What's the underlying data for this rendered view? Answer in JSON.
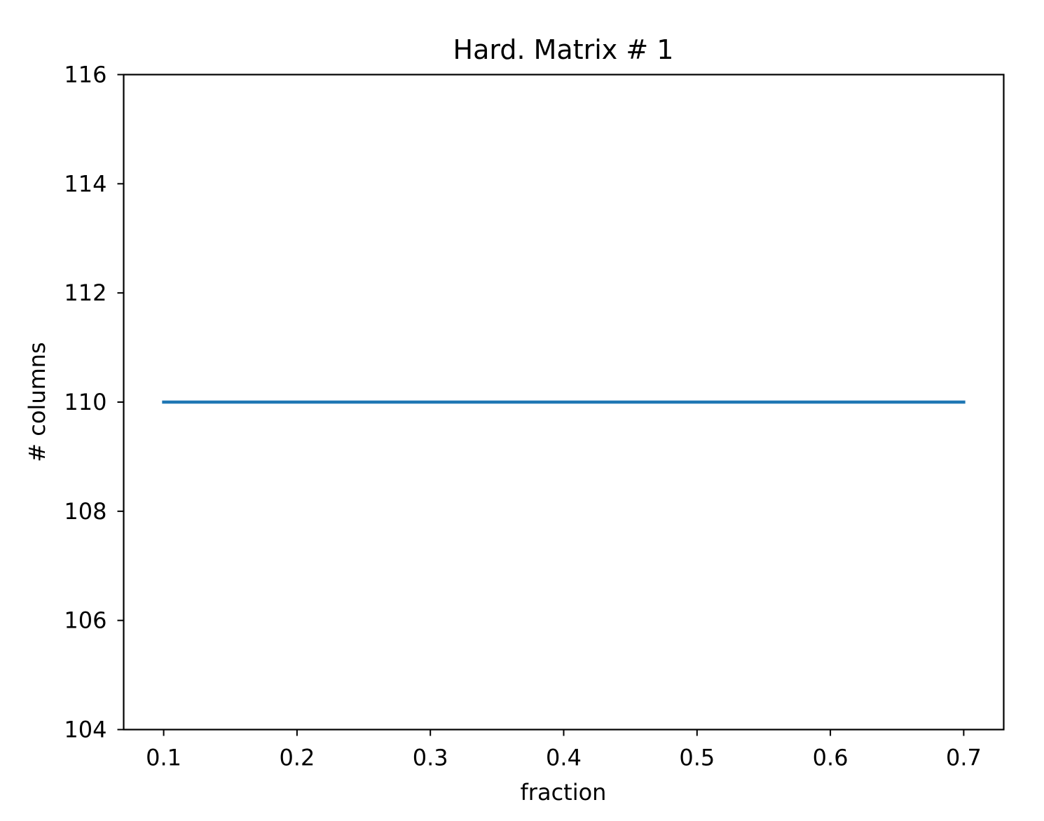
{
  "chart_data": {
    "type": "line",
    "title": "Hard. Matrix # 1",
    "xlabel": "fraction",
    "ylabel": "# columns",
    "xlim": [
      0.07,
      0.73
    ],
    "ylim": [
      104,
      116
    ],
    "x_ticks": [
      0.1,
      0.2,
      0.3,
      0.4,
      0.5,
      0.6,
      0.7
    ],
    "x_tick_labels": [
      "0.1",
      "0.2",
      "0.3",
      "0.4",
      "0.5",
      "0.6",
      "0.7"
    ],
    "y_ticks": [
      104,
      106,
      108,
      110,
      112,
      114,
      116
    ],
    "y_tick_labels": [
      "104",
      "106",
      "108",
      "110",
      "112",
      "114",
      "116"
    ],
    "grid": false,
    "series": [
      {
        "color": "#1f77b4",
        "x": [
          0.1,
          0.2,
          0.3,
          0.4,
          0.5,
          0.6,
          0.7
        ],
        "y": [
          110,
          110,
          110,
          110,
          110,
          110,
          110
        ]
      }
    ]
  }
}
